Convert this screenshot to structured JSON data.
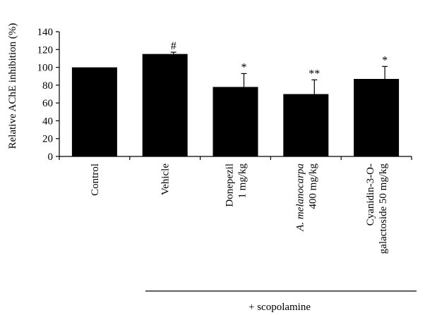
{
  "chart_data": {
    "type": "bar",
    "ylabel": "Relative AChE inhibition (%)",
    "ylim": [
      0,
      140
    ],
    "yticks": [
      0,
      20,
      40,
      60,
      80,
      100,
      120,
      140
    ],
    "categories": [
      {
        "lines": [
          {
            "text": "Control"
          }
        ]
      },
      {
        "lines": [
          {
            "text": "Vehicle"
          }
        ]
      },
      {
        "lines": [
          {
            "text": "Donepezil"
          },
          {
            "text": "1 mg/kg"
          }
        ]
      },
      {
        "lines": [
          {
            "italic": "A. melanocarpa"
          },
          {
            "text": "400 mg/kg"
          }
        ]
      },
      {
        "lines": [
          {
            "text": "Cyanidin-3-O-"
          },
          {
            "text": "galactoside 50 mg/kg"
          }
        ]
      }
    ],
    "values": [
      100,
      115,
      78,
      70,
      87
    ],
    "errors": [
      0,
      2,
      15,
      16,
      14
    ],
    "significance": [
      "",
      "#",
      "*",
      "**",
      "*"
    ],
    "bracket_label": "+ scopolamine",
    "bracket_range": [
      1,
      4
    ],
    "bar_color": "#000000",
    "grid": false,
    "legend": "none"
  }
}
